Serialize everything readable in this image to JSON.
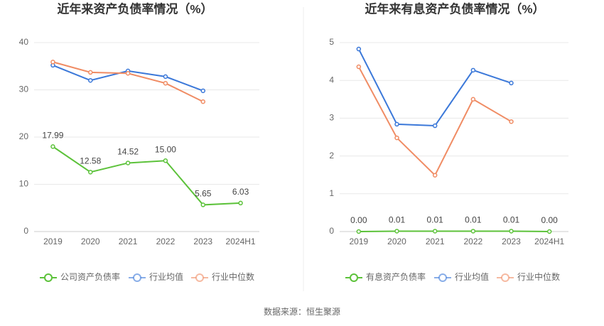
{
  "chart_data": [
    {
      "type": "line",
      "title": "近年来资产负债率情况（%）",
      "categories": [
        "2019",
        "2020",
        "2021",
        "2022",
        "2023",
        "2024H1"
      ],
      "ylim": [
        0,
        40
      ],
      "yticks": [
        0,
        10,
        20,
        30,
        40
      ],
      "grid": true,
      "series": [
        {
          "name": "公司资产负债率",
          "color": "#5cc23a",
          "values": [
            17.99,
            12.58,
            14.52,
            15.0,
            5.65,
            6.03
          ],
          "value_labels": [
            "17.99",
            "12.58",
            "14.52",
            "15.00",
            "5.65",
            "6.03"
          ]
        },
        {
          "name": "行业均值",
          "color": "#3b78d9",
          "values": [
            35.2,
            32.0,
            34.0,
            32.8,
            29.8,
            null
          ]
        },
        {
          "name": "行业中位数",
          "color": "#f08c64",
          "values": [
            35.9,
            33.7,
            33.5,
            31.4,
            27.5,
            null
          ]
        }
      ]
    },
    {
      "type": "line",
      "title": "近年来有息资产负债率情况（%）",
      "categories": [
        "2019",
        "2020",
        "2021",
        "2022",
        "2023",
        "2024H1"
      ],
      "ylim": [
        0,
        5
      ],
      "yticks": [
        0,
        1,
        2,
        3,
        4,
        5
      ],
      "grid": true,
      "series": [
        {
          "name": "有息资产负债率",
          "color": "#5cc23a",
          "values": [
            0,
            0.01,
            0.01,
            0.01,
            0.01,
            0
          ],
          "value_labels": [
            "0.00",
            "0.01",
            "0.01",
            "0.01",
            "0.01",
            "0.00"
          ]
        },
        {
          "name": "行业均值",
          "color": "#3b78d9",
          "values": [
            4.83,
            2.84,
            2.8,
            4.27,
            3.93,
            null
          ]
        },
        {
          "name": "行业中位数",
          "color": "#f08c64",
          "values": [
            4.36,
            2.48,
            1.49,
            3.5,
            2.91,
            null
          ]
        }
      ]
    }
  ],
  "source": "数据来源：恒生聚源"
}
